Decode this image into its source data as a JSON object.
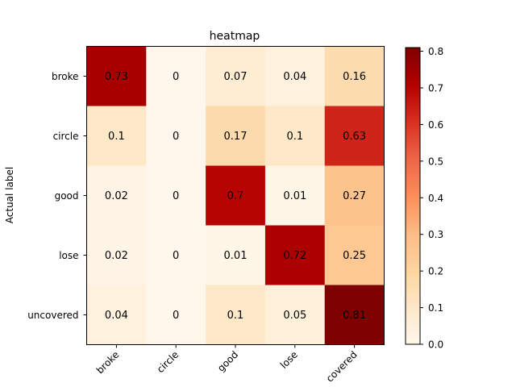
{
  "chart_data": {
    "type": "heatmap",
    "title": "heatmap",
    "ylabel": "Actual label",
    "xlabel": "",
    "rows": [
      "broke",
      "circle",
      "good",
      "lose",
      "uncovered"
    ],
    "cols": [
      "broke",
      "circle",
      "good",
      "lose",
      "uncovered"
    ],
    "col_tick_labels_shown": [
      "broke",
      "circle",
      "good",
      "lose",
      "covered"
    ],
    "values": [
      [
        0.73,
        0.0,
        0.07,
        0.04,
        0.16
      ],
      [
        0.1,
        0.0,
        0.17,
        0.1,
        0.63
      ],
      [
        0.02,
        0.0,
        0.7,
        0.01,
        0.27
      ],
      [
        0.02,
        0.0,
        0.01,
        0.72,
        0.25
      ],
      [
        0.04,
        0.0,
        0.1,
        0.05,
        0.81
      ]
    ],
    "colormap": "OrRd",
    "colormap_stops": [
      "#fff7ec",
      "#fee8c8",
      "#fdd49e",
      "#fdbb84",
      "#fc8d59",
      "#ef6548",
      "#d7301f",
      "#b30000",
      "#7f0000"
    ],
    "vmin": 0.0,
    "vmax": 0.81,
    "colorbar_ticks": [
      "0.0",
      "0.1",
      "0.2",
      "0.3",
      "0.4",
      "0.5",
      "0.6",
      "0.7",
      "0.8"
    ],
    "grid": false
  }
}
